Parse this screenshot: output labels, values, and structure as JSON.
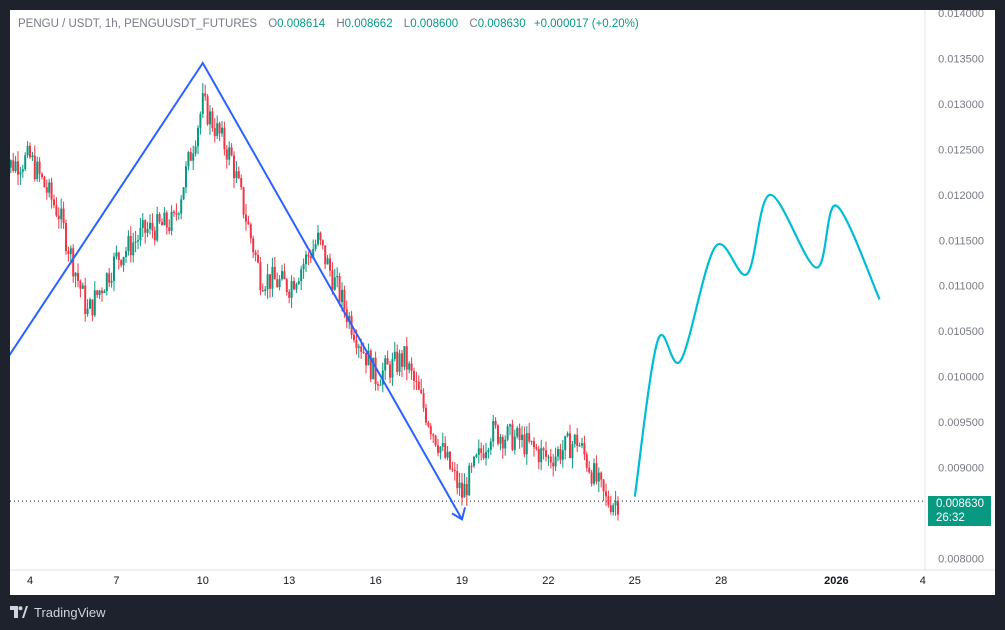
{
  "legend": {
    "symbol": "PENGU / USDT, 1h, PENGUUSDT_FUTURES",
    "o_label": "O",
    "o_value": "0.008614",
    "h_label": "H",
    "h_value": "0.008662",
    "l_label": "L",
    "l_value": "0.008600",
    "c_label": "C",
    "c_value": "0.008630",
    "change": "+0.000017 (+0.20%)"
  },
  "price_tag": {
    "price": "0.008630",
    "countdown": "26:32"
  },
  "footer": {
    "brand": "TradingView",
    "logo_icon": "tradingview-logo-icon"
  },
  "colors": {
    "up": "#089981",
    "down": "#f23645",
    "pattern": "#2962ff",
    "projection": "#00bcd4",
    "axis_text": "#787b86"
  },
  "chart_data": [
    {
      "type": "candlestick",
      "xlabel": "",
      "ylabel": "",
      "x_ticks": [
        "4",
        "7",
        "10",
        "13",
        "16",
        "19",
        "22",
        "25",
        "28",
        "2026",
        "4"
      ],
      "y_ticks": [
        "0.014000",
        "0.013500",
        "0.013000",
        "0.012500",
        "0.012000",
        "0.011500",
        "0.011000",
        "0.010500",
        "0.010000",
        "0.009500",
        "0.009000",
        "0.008500",
        "0.008000"
      ],
      "ylim": [
        0.00795,
        0.014
      ],
      "grid": false,
      "current_price": 0.00863,
      "series": [
        {
          "close_path": [
            [
              "Dec 3",
              0.0123
            ],
            [
              "Dec 4",
              0.0124
            ],
            [
              "Dec 5",
              0.0118
            ],
            [
              "Dec 6",
              0.0107
            ],
            [
              "Dec 7",
              0.0113
            ],
            [
              "Dec 8",
              0.0116
            ],
            [
              "Dec 9",
              0.0117
            ],
            [
              "Dec 10",
              0.013
            ],
            [
              "Dec 11",
              0.0124
            ],
            [
              "Dec 12",
              0.0111
            ],
            [
              "Dec 13",
              0.011
            ],
            [
              "Dec 14",
              0.0115
            ],
            [
              "Dec 15",
              0.0107
            ],
            [
              "Dec 16",
              0.01
            ],
            [
              "Dec 17",
              0.0102
            ],
            [
              "Dec 18",
              0.0094
            ],
            [
              "Dec 19",
              0.0087
            ],
            [
              "Dec 20",
              0.0094
            ],
            [
              "Dec 21",
              0.0093
            ],
            [
              "Dec 22",
              0.0091
            ],
            [
              "Dec 23",
              0.0093
            ],
            [
              "Dec 24",
              0.00863
            ]
          ]
        }
      ]
    },
    {
      "type": "line",
      "series": [
        {
          "name": "",
          "points": [
            [
              "Dec 3",
              0.0101
            ],
            [
              "Dec 10",
              0.01345
            ],
            [
              "Dec 19",
              0.00843
            ]
          ]
        }
      ]
    },
    {
      "type": "line",
      "series": [
        {
          "name": "",
          "points": [
            [
              "Dec 25",
              0.00868
            ],
            [
              "Dec 25.8",
              0.0104
            ],
            [
              "Dec 26.6",
              0.01018
            ],
            [
              "Dec 27.8",
              0.01143
            ],
            [
              "Dec 28.9",
              0.01113
            ],
            [
              "Dec 29.7",
              0.012
            ],
            [
              "Dec 31.3",
              0.0112
            ],
            [
              "Jan 1",
              0.01188
            ],
            [
              "Jan 2.5",
              0.01085
            ]
          ]
        }
      ]
    }
  ]
}
